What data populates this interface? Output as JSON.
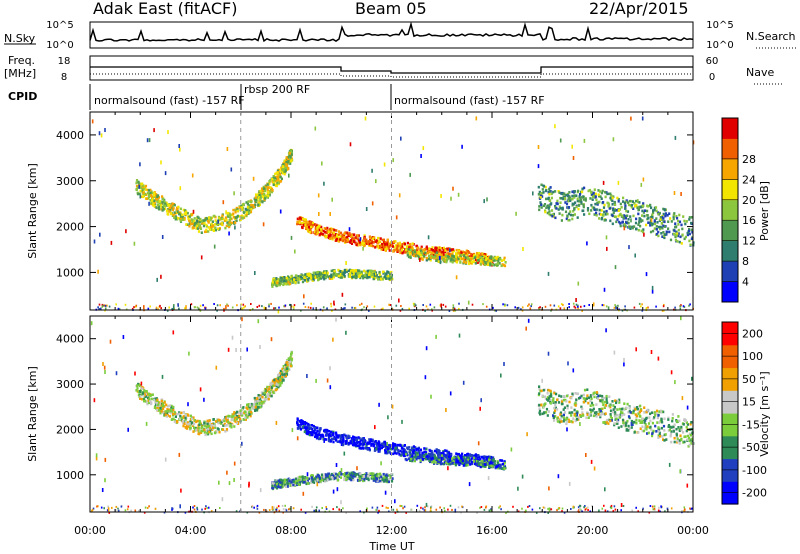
{
  "header": {
    "station": "Adak East (fitACF)",
    "beam": "Beam 05",
    "date": "22/Apr/2015"
  },
  "panels": {
    "nsky": {
      "label": "N.Sky",
      "right_label": "N.Search",
      "ticks_left": [
        "10^5",
        "10^0"
      ],
      "ticks_right": [
        "10^5",
        "10^0"
      ]
    },
    "freq": {
      "label_line1": "Freq.",
      "label_line2": "[MHz]",
      "right_label": "Nave",
      "ticks_left": [
        "18",
        "8"
      ],
      "ticks_right": [
        "60",
        "0"
      ]
    },
    "cpid": {
      "label": "CPID",
      "segments": [
        {
          "text": "normalsound (fast) -157 RF",
          "start_h": 0,
          "end_h": 6
        },
        {
          "text": "rbsp 200 RF",
          "start_h": 6,
          "end_h": 12
        },
        {
          "text": "normalsound (fast) -157 RF",
          "start_h": 12,
          "end_h": 24
        }
      ]
    }
  },
  "chart_data": [
    {
      "type": "heatmap",
      "title": "",
      "xlabel": "",
      "ylabel": "Slant Range [km]",
      "xlim": [
        0,
        24
      ],
      "ylim": [
        180,
        4500
      ],
      "yticks": [
        1000,
        2000,
        3000,
        4000
      ],
      "colorbar": {
        "label": "Power [dB]",
        "ticks": [
          "4",
          "8",
          "12",
          "16",
          "20",
          "24",
          "28"
        ],
        "colors": [
          "#0000ff",
          "#1f3fb4",
          "#2e7d6e",
          "#4f9a50",
          "#8cc63f",
          "#f2e600",
          "#f7a600",
          "#f06000",
          "#e00000"
        ]
      },
      "bands": [
        {
          "x": [
            1.8,
            2.6,
            3.5,
            4.4,
            5.4,
            6.3,
            7.0,
            7.6,
            8.0
          ],
          "y": [
            2900,
            2600,
            2300,
            2050,
            2150,
            2450,
            2800,
            3200,
            3600
          ],
          "half_width": 160,
          "level": 0.55
        },
        {
          "x": [
            8.2,
            9.0,
            10.0,
            11.0,
            12.0,
            13.0,
            14.0,
            15.0,
            16.0
          ],
          "y": [
            2150,
            1950,
            1800,
            1700,
            1600,
            1520,
            1450,
            1380,
            1300
          ],
          "half_width": 120,
          "level": 0.8
        },
        {
          "x": [
            7.2,
            8.0,
            9.0,
            10.0,
            11.0,
            12.0
          ],
          "y": [
            800,
            870,
            950,
            1000,
            980,
            950
          ],
          "half_width": 90,
          "level": 0.45
        },
        {
          "x": [
            12.5,
            14.0,
            15.5,
            16.5
          ],
          "y": [
            1450,
            1350,
            1300,
            1250
          ],
          "half_width": 100,
          "level": 0.55
        },
        {
          "x": [
            17.8,
            18.8,
            19.8,
            20.8,
            21.8,
            22.8,
            24.0
          ],
          "y": [
            2700,
            2450,
            2600,
            2400,
            2250,
            2100,
            1900
          ],
          "half_width": 320,
          "level": 0.35
        }
      ]
    },
    {
      "type": "heatmap",
      "title": "",
      "xlabel": "Time UT",
      "ylabel": "Slant Range [km]",
      "xlim": [
        0,
        24
      ],
      "ylim": [
        180,
        4500
      ],
      "yticks": [
        1000,
        2000,
        3000,
        4000
      ],
      "xticks": [
        "00:00",
        "04:00",
        "08:00",
        "12:00",
        "16:00",
        "20:00",
        "00:00"
      ],
      "colorbar": {
        "label": "Velocity [m s⁻¹]",
        "ticks": [
          "200",
          "100",
          "50",
          "15",
          "-15",
          "-50",
          "-100",
          "-200"
        ],
        "colors": [
          "#0000ff",
          "#2040c0",
          "#2e8b57",
          "#7ccd3c",
          "#c8c8c8",
          "#f0a000",
          "#f06000",
          "#ff0000"
        ]
      },
      "bands": [
        {
          "x": [
            1.8,
            2.6,
            3.5,
            4.4,
            5.4,
            6.3,
            7.0,
            7.6,
            8.0
          ],
          "y": [
            2900,
            2600,
            2300,
            2050,
            2150,
            2450,
            2800,
            3200,
            3600
          ],
          "half_width": 160,
          "level": 0.52
        },
        {
          "x": [
            8.2,
            9.0,
            10.0,
            11.0,
            12.0,
            13.0,
            14.0,
            15.0,
            16.0
          ],
          "y": [
            2150,
            1950,
            1800,
            1700,
            1600,
            1520,
            1450,
            1380,
            1300
          ],
          "half_width": 120,
          "level": 0.05
        },
        {
          "x": [
            7.2,
            8.0,
            9.0,
            10.0,
            11.0,
            12.0
          ],
          "y": [
            800,
            870,
            950,
            1000,
            980,
            950
          ],
          "half_width": 90,
          "level": 0.35
        },
        {
          "x": [
            12.5,
            14.0,
            15.5,
            16.5
          ],
          "y": [
            1450,
            1350,
            1300,
            1250
          ],
          "half_width": 100,
          "level": 0.25
        },
        {
          "x": [
            17.8,
            18.8,
            19.8,
            20.8,
            21.8,
            22.8,
            24.0
          ],
          "y": [
            2700,
            2450,
            2600,
            2400,
            2250,
            2100,
            1900
          ],
          "half_width": 320,
          "level": 0.45
        }
      ]
    }
  ]
}
